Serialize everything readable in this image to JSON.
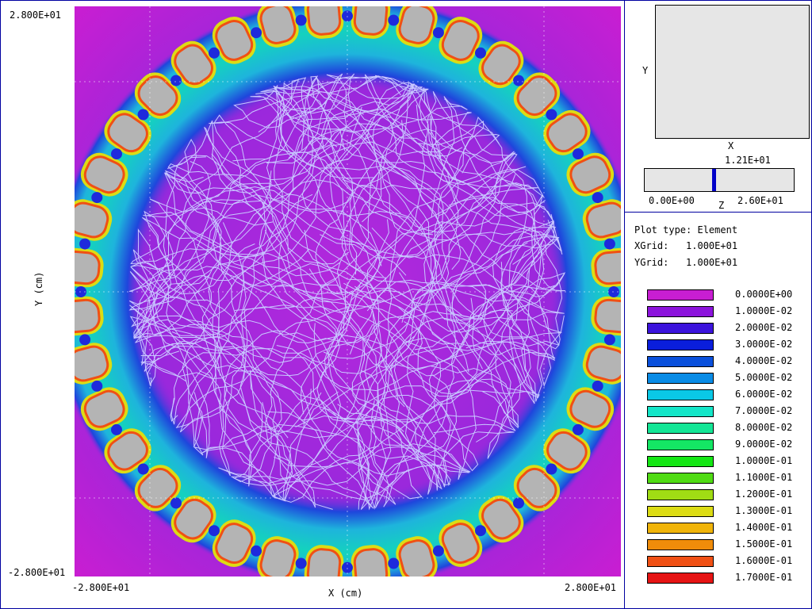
{
  "plot": {
    "y_max_label": "2.800E+01",
    "y_min_label": "-2.800E+01",
    "x_min_label": "-2.800E+01",
    "x_max_label": "2.800E+01",
    "x_axis_label": "X (cm)",
    "y_axis_label": "Y (cm)"
  },
  "view": {
    "y_label": "Y",
    "x_label": "X",
    "z_value": "1.21E+01",
    "z_min": "0.00E+00",
    "z_max": "2.60E+01",
    "z_label": "Z",
    "z_fraction": 0.465
  },
  "info": {
    "plot_type": "Plot type: Element",
    "xgrid": "XGrid:   1.000E+01",
    "ygrid": "YGrid:   1.000E+01"
  },
  "legend": [
    {
      "color": "#c81ed2",
      "label": "0.0000E+00"
    },
    {
      "color": "#8c14dc",
      "label": "1.0000E-02"
    },
    {
      "color": "#3c14dc",
      "label": "2.0000E-02"
    },
    {
      "color": "#0a1edc",
      "label": "3.0000E-02"
    },
    {
      "color": "#0a50dc",
      "label": "4.0000E-02"
    },
    {
      "color": "#0a8ce6",
      "label": "5.0000E-02"
    },
    {
      "color": "#0ac8e6",
      "label": "6.0000E-02"
    },
    {
      "color": "#14e6c8",
      "label": "7.0000E-02"
    },
    {
      "color": "#14e696",
      "label": "8.0000E-02"
    },
    {
      "color": "#14e664",
      "label": "9.0000E-02"
    },
    {
      "color": "#14e614",
      "label": "1.0000E-01"
    },
    {
      "color": "#50dc14",
      "label": "1.1000E-01"
    },
    {
      "color": "#a0dc14",
      "label": "1.2000E-01"
    },
    {
      "color": "#dcdc14",
      "label": "1.3000E-01"
    },
    {
      "color": "#f0b40a",
      "label": "1.4000E-01"
    },
    {
      "color": "#f08c0a",
      "label": "1.5000E-01"
    },
    {
      "color": "#f05014",
      "label": "1.6000E-01"
    },
    {
      "color": "#e61414",
      "label": "1.7000E-01"
    }
  ],
  "colors": {
    "background_field": "#b428dc",
    "ring_field": "#1eb4dc",
    "electrode": "#b4b4b4",
    "trajectory": "#c8c8ff",
    "frame": "#0000a0"
  }
}
